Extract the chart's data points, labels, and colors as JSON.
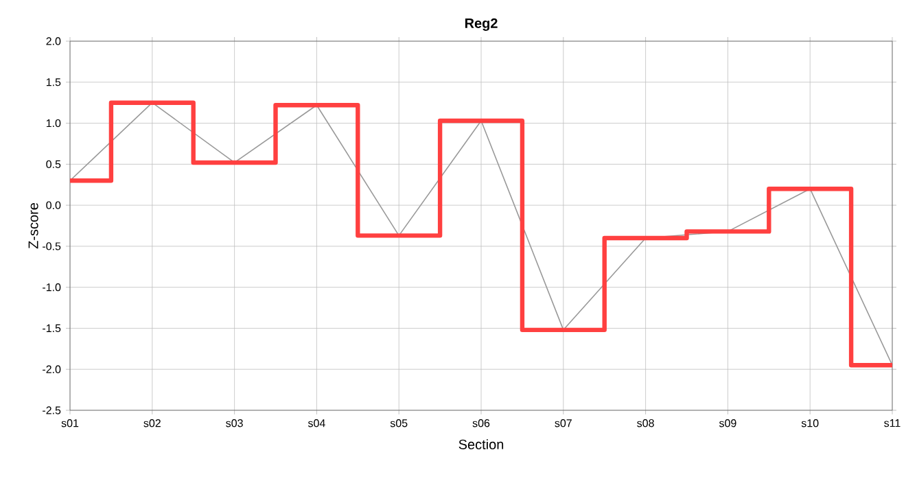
{
  "chart_data": {
    "type": "step",
    "title": "Reg2",
    "xlabel": "Section",
    "ylabel": "Z-score",
    "categories": [
      "s01",
      "s02",
      "s03",
      "s04",
      "s05",
      "s06",
      "s07",
      "s08",
      "s09",
      "s10",
      "s11"
    ],
    "ylim": [
      -2.5,
      2
    ],
    "yticks": [
      {
        "value": -2.5,
        "label": "-2.5"
      },
      {
        "value": -2,
        "label": "-2.0"
      },
      {
        "value": -1.5,
        "label": "-1.5"
      },
      {
        "value": -1,
        "label": "-1.0"
      },
      {
        "value": -0.5,
        "label": "-0.5"
      },
      {
        "value": 0,
        "label": "0.0"
      },
      {
        "value": 0.5,
        "label": "0.5"
      },
      {
        "value": 1,
        "label": "1.0"
      },
      {
        "value": 1.5,
        "label": "1.5"
      },
      {
        "value": 2,
        "label": "2.0"
      }
    ],
    "grid": true,
    "series": [
      {
        "type": "line",
        "color": "#999999",
        "values": [
          0.3,
          1.25,
          0.52,
          1.22,
          -0.37,
          1.03,
          -1.52,
          -0.4,
          -0.32,
          0.2,
          -1.95
        ]
      },
      {
        "color": "#ff4040",
        "values": [
          0.3,
          1.25,
          0.52,
          1.22,
          -0.37,
          1.03,
          -1.52,
          -0.4,
          -0.32,
          0.2,
          -1.95
        ]
      }
    ]
  }
}
